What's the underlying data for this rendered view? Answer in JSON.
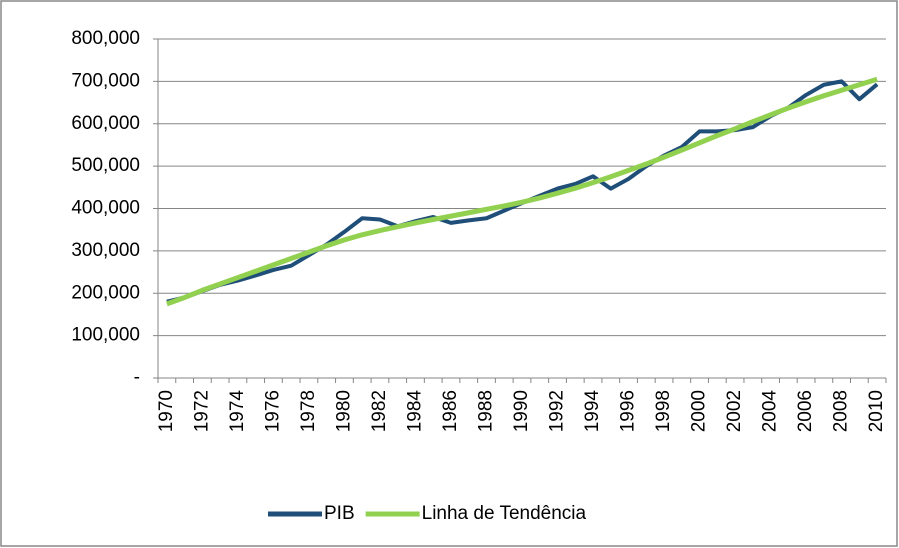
{
  "chart_data": {
    "type": "line",
    "categories": [
      "1970",
      "1971",
      "1972",
      "1973",
      "1974",
      "1975",
      "1976",
      "1977",
      "1978",
      "1979",
      "1980",
      "1981",
      "1982",
      "1983",
      "1984",
      "1985",
      "1986",
      "1987",
      "1988",
      "1989",
      "1990",
      "1991",
      "1992",
      "1993",
      "1994",
      "1995",
      "1996",
      "1997",
      "1998",
      "1999",
      "2000",
      "2001",
      "2002",
      "2003",
      "2004",
      "2005",
      "2006",
      "2007",
      "2008",
      "2009",
      "2010"
    ],
    "series": [
      {
        "name": "PIB",
        "color": "#1f4e79",
        "values": [
          180000,
          190000,
          205000,
          220000,
          230000,
          242000,
          255000,
          265000,
          290000,
          315000,
          345000,
          377000,
          374000,
          358000,
          370000,
          380000,
          366000,
          372000,
          377000,
          395000,
          413000,
          430000,
          447000,
          458000,
          476000,
          447000,
          470000,
          500000,
          525000,
          545000,
          582000,
          582000,
          585000,
          592000,
          618000,
          638000,
          668000,
          692000,
          700000,
          658000,
          693000
        ]
      },
      {
        "name": "Linha de Tendência",
        "color": "#92d050",
        "values": [
          175000,
          190000,
          207000,
          222000,
          237000,
          252000,
          267000,
          282000,
          297000,
          312000,
          326000,
          338000,
          348000,
          357000,
          366000,
          374000,
          382000,
          390000,
          398000,
          406000,
          415000,
          425000,
          436000,
          448000,
          461000,
          475000,
          490000,
          505000,
          521000,
          538000,
          555000,
          572000,
          588000,
          605000,
          621000,
          637000,
          652000,
          666000,
          679000,
          692000,
          705000
        ]
      }
    ],
    "ylim": [
      0,
      800000
    ],
    "yticks": [
      {
        "value": 0,
        "label": "-"
      },
      {
        "value": 100000,
        "label": "100,000"
      },
      {
        "value": 200000,
        "label": "200,000"
      },
      {
        "value": 300000,
        "label": "300,000"
      },
      {
        "value": 400000,
        "label": "400,000"
      },
      {
        "value": 500000,
        "label": "500,000"
      },
      {
        "value": 600000,
        "label": "600,000"
      },
      {
        "value": 700000,
        "label": "700,000"
      },
      {
        "value": 800000,
        "label": "800,000"
      }
    ],
    "grid": true,
    "legend": "bottom"
  }
}
